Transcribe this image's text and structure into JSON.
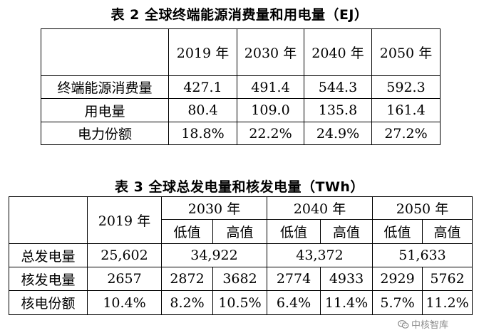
{
  "table2": {
    "caption": "表 2  全球终端能源消费量和用电量（EJ）",
    "years": [
      "2019 年",
      "2030 年",
      "2040 年",
      "2050 年"
    ],
    "rows": [
      {
        "label": "终端能源消费量",
        "values": [
          "427.1",
          "491.4",
          "544.3",
          "592.3"
        ]
      },
      {
        "label": "用电量",
        "values": [
          "80.4",
          "109.0",
          "135.8",
          "161.4"
        ]
      },
      {
        "label": "电力份额",
        "values": [
          "18.8%",
          "22.2%",
          "24.9%",
          "27.2%"
        ]
      }
    ]
  },
  "table3": {
    "caption": "表 3  全球总发电量和核发电量（TWh）",
    "year_2019": "2019 年",
    "year_groups": [
      "2030 年",
      "2040 年",
      "2050 年"
    ],
    "sub_headers": [
      "低值",
      "高值",
      "低值",
      "高值",
      "低值",
      "高值"
    ],
    "total_row": {
      "label": "总发电量",
      "v2019": "25,602",
      "merged": [
        "34,922",
        "43,372",
        "51,633"
      ]
    },
    "rows": [
      {
        "label": "核发电量",
        "values": [
          "2657",
          "2872",
          "3682",
          "2774",
          "4933",
          "2929",
          "5762"
        ]
      },
      {
        "label": "核电份额",
        "values": [
          "10.4%",
          "8.2%",
          "10.5%",
          "6.4%",
          "11.4%",
          "5.7%",
          "11.2%"
        ]
      }
    ]
  },
  "watermark": {
    "text": "中核智库",
    "icon": "wechat-icon",
    "color": "#8c8c8c"
  }
}
